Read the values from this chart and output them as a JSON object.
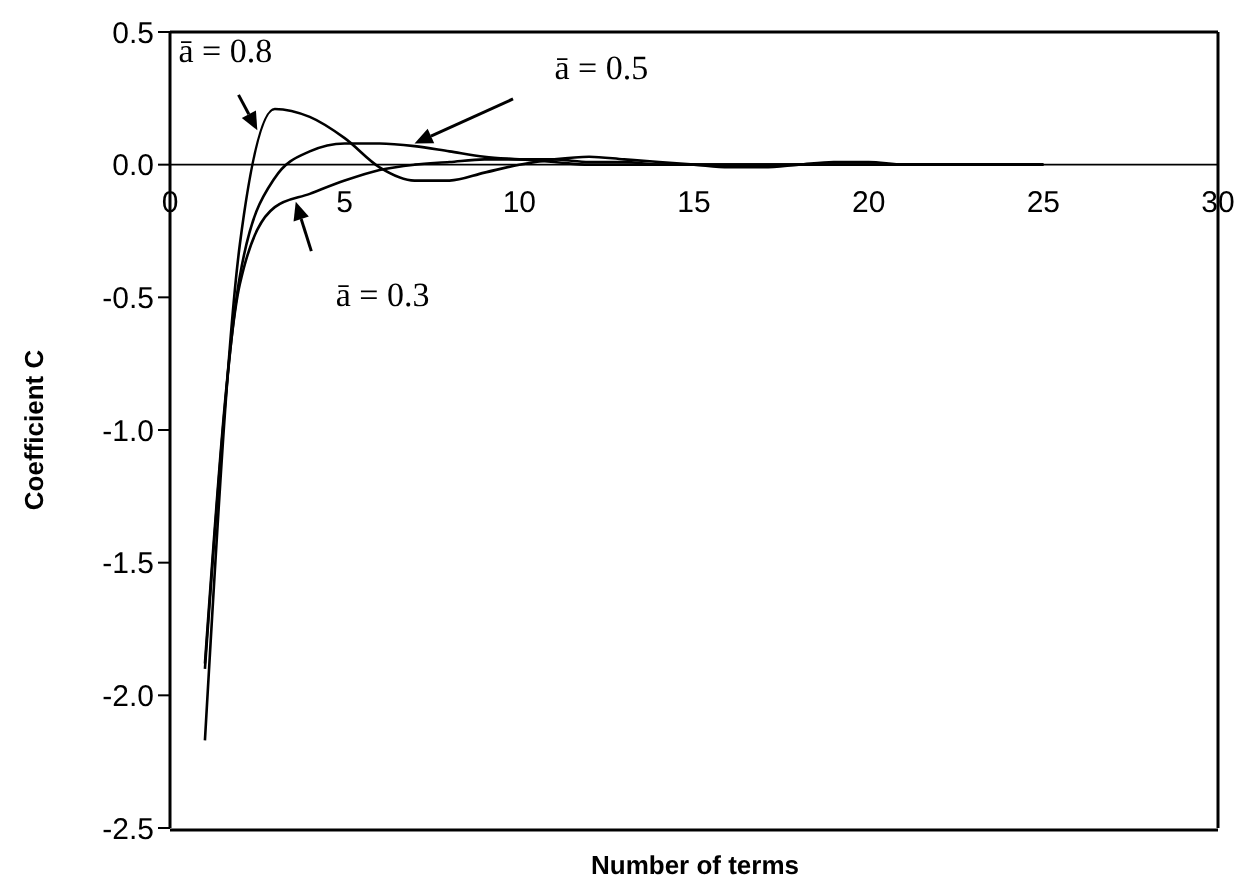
{
  "chart_data": {
    "type": "line",
    "xlabel": "Number of terms",
    "ylabel": "Coefficient C",
    "x": [
      1,
      2,
      3,
      4,
      5,
      6,
      7,
      8,
      9,
      10,
      11,
      12,
      13,
      14,
      15,
      16,
      17,
      18,
      19,
      20,
      21,
      22,
      23,
      24,
      25
    ],
    "series": [
      {
        "color": "#000000",
        "values": [
          -2.17,
          -0.3,
          0.21,
          0.18,
          0.1,
          -0.01,
          -0.06,
          -0.06,
          -0.03,
          0.0,
          0.02,
          0.03,
          0.02,
          0.01,
          0.0,
          -0.01,
          -0.01,
          0.0,
          0.01,
          0.01,
          0.0,
          0.0,
          0.0,
          0.0,
          0.0
        ]
      },
      {
        "color": "#000000",
        "values": [
          -1.9,
          -0.42,
          -0.05,
          0.05,
          0.08,
          0.08,
          0.07,
          0.05,
          0.03,
          0.02,
          0.01,
          0.0,
          0.0,
          0.0,
          0.0,
          0.0,
          0.0,
          0.0,
          0.0,
          0.0,
          0.0,
          0.0,
          0.0,
          0.0,
          0.0
        ]
      },
      {
        "color": "#000000",
        "values": [
          -1.88,
          -0.45,
          -0.16,
          -0.11,
          -0.06,
          -0.02,
          0.0,
          0.01,
          0.02,
          0.02,
          0.02,
          0.01,
          0.01,
          0.0,
          0.0,
          0.0,
          0.0,
          0.0,
          0.0,
          0.0,
          0.0,
          0.0,
          0.0,
          0.0,
          0.0
        ]
      }
    ],
    "annotations": [
      {
        "text": "ā = 0.8",
        "x": 2.5,
        "y": 0.13
      },
      {
        "text": "ā = 0.5",
        "x": 7,
        "y": 0.08
      },
      {
        "text": "ā = 0.3",
        "x": 3.6,
        "y": -0.14
      }
    ],
    "xlim": [
      0,
      30
    ],
    "xticks": [
      0,
      5,
      10,
      15,
      20,
      25,
      30
    ],
    "ylim": [
      -2.5,
      0.5
    ],
    "yticks": [
      {
        "value": -2.5,
        "label": "-2.5"
      },
      {
        "value": -2,
        "label": "-2.0"
      },
      {
        "value": -1.5,
        "label": "-1.5"
      },
      {
        "value": -1,
        "label": "-1.0"
      },
      {
        "value": -0.5,
        "label": "-0.5"
      },
      {
        "value": 0,
        "label": "0.0"
      },
      {
        "value": 0.5,
        "label": "0.5"
      }
    ],
    "grid": false,
    "legend": false,
    "marker": "none",
    "line_style": "solid"
  }
}
